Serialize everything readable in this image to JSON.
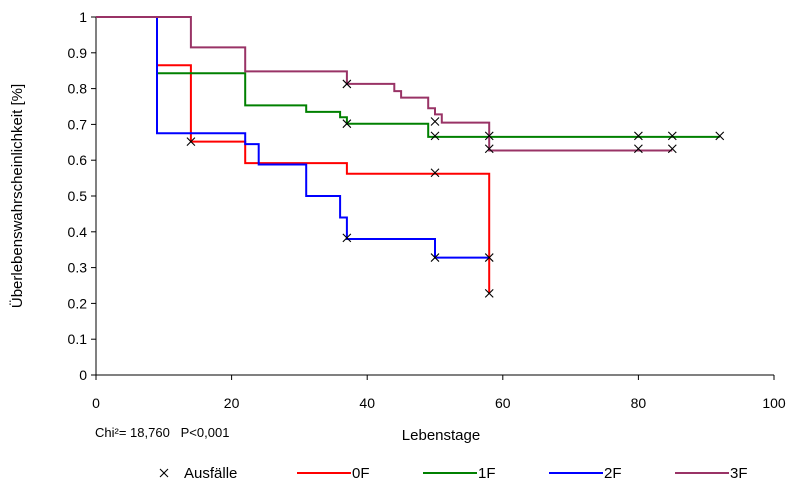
{
  "chart_data": {
    "type": "line",
    "title": "",
    "xlabel": "Lebenstage",
    "ylabel": "Überlebenswahrscheinlichkeit [%]",
    "xlim": [
      0,
      100
    ],
    "ylim": [
      0,
      1
    ],
    "xticks": [
      "0",
      "20",
      "40",
      "60",
      "80",
      "100"
    ],
    "yticks": [
      "0",
      "0.1",
      "0.2",
      "0.3",
      "0.4",
      "0.5",
      "0.6",
      "0.7",
      "0.8",
      "0.9",
      "1"
    ],
    "grid": false,
    "step": true,
    "annotation": "Chi²= 18,760   P<0,001",
    "legend_position": "bottom",
    "censor_label": "Ausfälle",
    "censor_marker": "×",
    "series": [
      {
        "name": "0F",
        "color": "#ff0000",
        "points": [
          [
            0,
            1.0
          ],
          [
            9,
            1.0
          ],
          [
            9,
            0.865
          ],
          [
            14,
            0.865
          ],
          [
            14,
            0.652
          ],
          [
            22,
            0.652
          ],
          [
            22,
            0.592
          ],
          [
            37,
            0.592
          ],
          [
            37,
            0.562
          ],
          [
            58,
            0.562
          ],
          [
            58,
            0.228
          ]
        ],
        "censored": [
          [
            14,
            0.652
          ],
          [
            50,
            0.565
          ],
          [
            58,
            0.228
          ]
        ]
      },
      {
        "name": "1F",
        "color": "#008000",
        "points": [
          [
            0,
            1.0
          ],
          [
            9,
            1.0
          ],
          [
            9,
            0.843
          ],
          [
            22,
            0.843
          ],
          [
            22,
            0.753
          ],
          [
            31,
            0.753
          ],
          [
            31,
            0.735
          ],
          [
            36,
            0.735
          ],
          [
            36,
            0.72
          ],
          [
            37,
            0.72
          ],
          [
            37,
            0.702
          ],
          [
            49,
            0.702
          ],
          [
            49,
            0.665
          ],
          [
            92,
            0.665
          ]
        ],
        "censored": [
          [
            37,
            0.702
          ],
          [
            50,
            0.668
          ],
          [
            58,
            0.668
          ],
          [
            80,
            0.668
          ],
          [
            85,
            0.668
          ],
          [
            92,
            0.668
          ]
        ]
      },
      {
        "name": "2F",
        "color": "#0000ff",
        "points": [
          [
            0,
            1.0
          ],
          [
            9,
            1.0
          ],
          [
            9,
            0.675
          ],
          [
            22,
            0.675
          ],
          [
            22,
            0.645
          ],
          [
            24,
            0.645
          ],
          [
            24,
            0.588
          ],
          [
            31,
            0.588
          ],
          [
            31,
            0.5
          ],
          [
            36,
            0.5
          ],
          [
            36,
            0.44
          ],
          [
            37,
            0.44
          ],
          [
            37,
            0.38
          ],
          [
            50,
            0.38
          ],
          [
            50,
            0.328
          ],
          [
            58,
            0.328
          ]
        ],
        "censored": [
          [
            37,
            0.383
          ],
          [
            50,
            0.328
          ],
          [
            58,
            0.328
          ]
        ]
      },
      {
        "name": "3F",
        "color": "#993366",
        "points": [
          [
            0,
            1.0
          ],
          [
            14,
            1.0
          ],
          [
            14,
            0.915
          ],
          [
            22,
            0.915
          ],
          [
            22,
            0.848
          ],
          [
            37,
            0.848
          ],
          [
            37,
            0.813
          ],
          [
            44,
            0.813
          ],
          [
            44,
            0.793
          ],
          [
            45,
            0.793
          ],
          [
            45,
            0.775
          ],
          [
            49,
            0.775
          ],
          [
            49,
            0.745
          ],
          [
            50,
            0.745
          ],
          [
            50,
            0.728
          ],
          [
            51,
            0.728
          ],
          [
            51,
            0.705
          ],
          [
            58,
            0.705
          ],
          [
            58,
            0.627
          ],
          [
            85,
            0.627
          ]
        ],
        "censored": [
          [
            37,
            0.813
          ],
          [
            50,
            0.708
          ],
          [
            58,
            0.632
          ],
          [
            80,
            0.632
          ],
          [
            85,
            0.632
          ]
        ]
      }
    ]
  }
}
